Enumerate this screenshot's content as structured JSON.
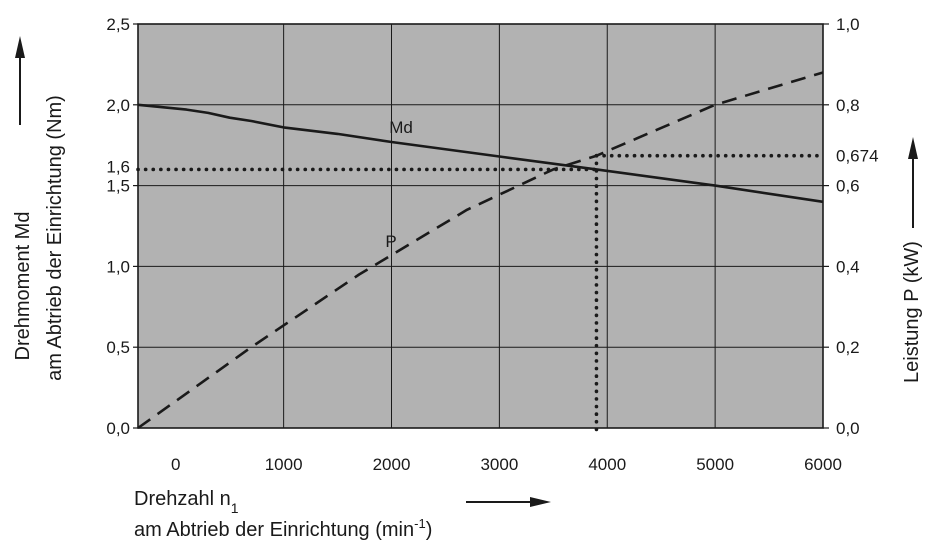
{
  "chart_data": {
    "type": "line",
    "x": {
      "ticks": [
        0,
        1000,
        2000,
        3000,
        4000,
        5000,
        6000
      ],
      "tick_labels": [
        "0",
        "1000",
        "2000",
        "3000",
        "4000",
        "5000",
        "6000"
      ],
      "range": [
        -350,
        6000
      ],
      "title_line1": "Drehzahl n",
      "title_subscript": "1",
      "title_line2_prefix": "am Abtrieb der Einrichtung (min",
      "title_superscript": "-1",
      "title_line2_suffix": ")"
    },
    "y_left": {
      "ticks": [
        0.0,
        0.5,
        1.0,
        1.5,
        2.0,
        2.5
      ],
      "tick_labels": [
        "0,0",
        "0,5",
        "1,0",
        "1,5",
        "2,0",
        "2,5"
      ],
      "extra_tick": {
        "value": 1.6,
        "label": "1,6"
      },
      "range": [
        0,
        2.5
      ],
      "title_line1": "Drehmoment Md",
      "title_line2": "am Abtrieb der Einrichtung (Nm)"
    },
    "y_right": {
      "ticks": [
        0.0,
        0.2,
        0.4,
        0.6,
        0.8,
        1.0
      ],
      "tick_labels": [
        "0,0",
        "0,2",
        "0,4",
        "0,6",
        "0,8",
        "1,0"
      ],
      "extra_tick": {
        "value": 0.674,
        "label": "0,674"
      },
      "range": [
        0,
        1.0
      ],
      "title": "Leistung P (kW)"
    },
    "series": [
      {
        "name": "Md",
        "axis": "left",
        "style": "solid",
        "x": [
          -350,
          100,
          300,
          500,
          700,
          1000,
          1500,
          2000,
          3000,
          3900,
          5000,
          6000
        ],
        "y": [
          2.0,
          1.97,
          1.95,
          1.92,
          1.9,
          1.86,
          1.82,
          1.77,
          1.68,
          1.6,
          1.5,
          1.4
        ]
      },
      {
        "name": "P",
        "axis": "right",
        "style": "dashed",
        "x": [
          -350,
          700,
          1700,
          2700,
          3500,
          3900,
          5000,
          6000
        ],
        "y": [
          0.0,
          0.2,
          0.38,
          0.54,
          0.64,
          0.674,
          0.8,
          0.88
        ]
      }
    ],
    "operating_point": {
      "x": 3900,
      "md": 1.6,
      "p": 0.674
    },
    "grid": true,
    "plot_background": "#b2b2b2",
    "line_color": "#1a1a1a",
    "arrows": [
      "up-left",
      "up-right",
      "right-bottom"
    ]
  }
}
